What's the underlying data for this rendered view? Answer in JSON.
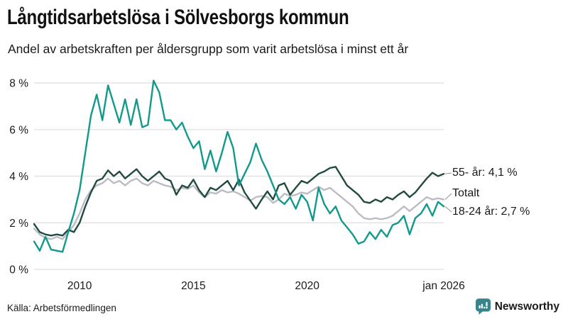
{
  "header": {
    "title": "Långtidsarbetslösa i Sölvesborgs kommun",
    "subtitle": "Andel av arbetskraften per åldersgrupp som varit arbetslösa i minst ett år"
  },
  "footer": {
    "source": "Källa: Arbetsförmedlingen",
    "brand_name": "Newsworthy",
    "brand_color": "#37858c"
  },
  "colors": {
    "teal_line": "#119a8b",
    "dark_line": "#214a40",
    "gray_line": "#bbbcc6",
    "gridline": "#e4e4e4",
    "axis_text": "#1a1a1a",
    "connector": "#999999"
  },
  "chart_data": {
    "type": "line",
    "title": "Långtidsarbetslösa i Sölvesborgs kommun",
    "subtitle": "Andel av arbetskraften per åldersgrupp som varit arbetslösa i minst ett år",
    "x_unit": "year (monthly series shown quarterly)",
    "x_start": 2008.0,
    "x_step": 0.25,
    "xlim": [
      2008.0,
      2026.0
    ],
    "ylim": [
      0,
      8.35
    ],
    "grid": "horizontal-only",
    "legend_position": "right-end-annotations",
    "yticks": [
      {
        "v": 0,
        "label": "0 %"
      },
      {
        "v": 2,
        "label": "2 %"
      },
      {
        "v": 4,
        "label": "4 %"
      },
      {
        "v": 6,
        "label": "6 %"
      },
      {
        "v": 8,
        "label": "8 %"
      }
    ],
    "xticks": [
      {
        "v": 2010,
        "label": "2010"
      },
      {
        "v": 2015,
        "label": "2015"
      },
      {
        "v": 2020,
        "label": "2020"
      },
      {
        "v": 2026,
        "label": "jan 2026"
      }
    ],
    "series": [
      {
        "name": "Totalt",
        "annotation": "Totalt",
        "end_value": 3.0,
        "color": "#bbbcc6",
        "label_center_y": 273,
        "values": [
          1.75,
          1.5,
          1.35,
          1.3,
          1.4,
          1.3,
          1.6,
          1.9,
          2.4,
          3.0,
          3.4,
          3.6,
          3.7,
          3.9,
          3.7,
          3.8,
          3.6,
          3.8,
          3.9,
          3.7,
          3.6,
          3.8,
          3.7,
          3.6,
          3.55,
          3.4,
          3.5,
          3.45,
          3.6,
          3.3,
          3.1,
          3.3,
          3.25,
          3.4,
          3.3,
          3.35,
          3.25,
          3.1,
          2.95,
          3.1,
          3.15,
          3.1,
          2.85,
          3.0,
          3.25,
          3.15,
          3.2,
          3.3,
          3.25,
          3.4,
          3.55,
          3.4,
          3.5,
          3.3,
          3.1,
          2.9,
          2.7,
          2.4,
          2.2,
          2.15,
          2.2,
          2.15,
          2.2,
          2.3,
          2.5,
          2.7,
          2.5,
          2.7,
          2.9,
          3.1,
          3.0,
          3.05,
          3.0
        ]
      },
      {
        "name": "55- år",
        "annotation": "55- år: 4,1 %",
        "end_value": 4.1,
        "color": "#214a40",
        "label_center_y": 244,
        "values": [
          1.95,
          1.6,
          1.5,
          1.45,
          1.5,
          1.45,
          1.7,
          1.6,
          2.0,
          2.7,
          3.3,
          3.8,
          3.9,
          4.25,
          4.0,
          4.2,
          3.9,
          4.1,
          4.3,
          4.0,
          3.8,
          4.0,
          4.2,
          3.9,
          3.8,
          3.2,
          3.6,
          3.5,
          3.85,
          3.4,
          3.1,
          3.5,
          3.4,
          3.6,
          3.8,
          3.4,
          3.85,
          3.3,
          2.95,
          2.6,
          3.0,
          3.35,
          3.0,
          3.6,
          3.7,
          3.2,
          3.5,
          3.8,
          3.7,
          3.9,
          4.1,
          4.2,
          4.35,
          4.4,
          4.0,
          3.6,
          3.4,
          3.2,
          2.9,
          2.85,
          3.0,
          2.9,
          3.1,
          3.0,
          3.2,
          3.35,
          3.1,
          3.3,
          3.6,
          3.9,
          4.15,
          4.0,
          4.1
        ]
      },
      {
        "name": "18-24 år",
        "annotation": "18-24 år: 2,7 %",
        "end_value": 2.7,
        "color": "#119a8b",
        "label_center_y": 299,
        "values": [
          1.2,
          0.8,
          1.4,
          0.85,
          0.8,
          0.75,
          1.6,
          2.4,
          3.4,
          5.0,
          6.6,
          7.5,
          6.4,
          7.9,
          7.1,
          6.3,
          7.3,
          6.2,
          7.3,
          6.1,
          6.2,
          8.1,
          7.6,
          6.4,
          6.4,
          6.0,
          6.3,
          5.7,
          5.2,
          5.5,
          4.3,
          5.1,
          4.2,
          5.0,
          5.9,
          5.2,
          3.6,
          4.1,
          4.6,
          5.4,
          4.7,
          4.2,
          3.6,
          3.0,
          2.8,
          3.1,
          2.6,
          3.2,
          2.9,
          2.1,
          3.5,
          2.8,
          2.4,
          2.7,
          2.1,
          1.8,
          1.5,
          1.1,
          1.2,
          1.6,
          1.3,
          1.7,
          1.4,
          1.9,
          2.0,
          2.3,
          1.5,
          2.2,
          2.4,
          2.8,
          2.3,
          2.9,
          2.7
        ]
      }
    ]
  }
}
